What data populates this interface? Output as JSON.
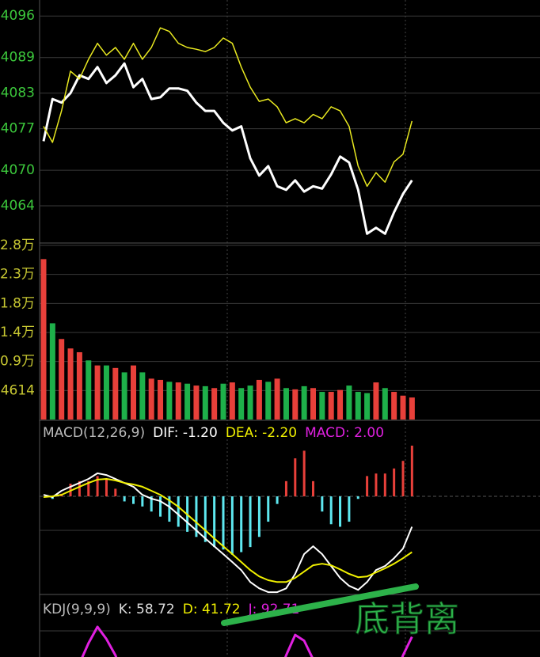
{
  "chart_data": [
    {
      "type": "line",
      "series": [
        {
          "name": "price",
          "color": "#ffffff",
          "width": 3,
          "values": [
            4074.9,
            4082.0,
            4081.4,
            4083.0,
            4086.0,
            4085.4,
            4087.4,
            4084.7,
            4086.0,
            4088.0,
            4084.0,
            4085.4,
            4082.0,
            4082.3,
            4083.8,
            4083.8,
            4083.4,
            4081.4,
            4080.0,
            4080.0,
            4078.0,
            4076.7,
            4077.4,
            4072.0,
            4069.1,
            4070.7,
            4067.3,
            4066.7,
            4068.3,
            4066.4,
            4067.3,
            4066.9,
            4069.3,
            4072.3,
            4071.3,
            4066.7,
            4059.3,
            4060.3,
            4059.3,
            4062.9,
            4066.0,
            4068.3
          ]
        },
        {
          "name": "avg",
          "color": "#e8e820",
          "width": 1.5,
          "values": [
            4077.4,
            4074.7,
            4080.0,
            4086.7,
            4085.4,
            4088.7,
            4091.4,
            4089.4,
            4090.7,
            4088.7,
            4091.4,
            4088.7,
            4090.7,
            4094.0,
            4093.4,
            4091.4,
            4090.7,
            4090.4,
            4090.0,
            4090.7,
            4092.3,
            4091.4,
            4087.4,
            4084.0,
            4081.6,
            4082.0,
            4080.7,
            4078.0,
            4078.7,
            4078.0,
            4079.4,
            4078.7,
            4080.7,
            4080.0,
            4077.4,
            4070.7,
            4067.3,
            4069.6,
            4068.0,
            4071.4,
            4072.7,
            4078.3
          ]
        }
      ],
      "ylim": [
        4058,
        4098.7
      ],
      "yticks": [
        4096,
        4089,
        4083,
        4077,
        4070,
        4064
      ],
      "tick_color": "#3cc83c"
    },
    {
      "type": "bar",
      "values": [
        25500,
        15300,
        12800,
        11300,
        10700,
        9400,
        8600,
        8600,
        8200,
        7500,
        8600,
        7500,
        6500,
        6300,
        6000,
        5900,
        5700,
        5400,
        5300,
        5000,
        5700,
        5900,
        5000,
        5400,
        6300,
        6000,
        6500,
        5000,
        4800,
        5300,
        5000,
        4400,
        4400,
        4700,
        5400,
        4400,
        4200,
        5900,
        5000,
        4400,
        3800,
        3500
      ],
      "colors": [
        "#e8403a",
        "#1eb04a",
        "#e8403a",
        "#e8403a",
        "#e8403a",
        "#1eb04a",
        "#e8403a",
        "#1eb04a",
        "#e8403a",
        "#1eb04a",
        "#e8403a",
        "#1eb04a",
        "#e8403a",
        "#e8403a",
        "#1eb04a",
        "#e8403a",
        "#1eb04a",
        "#e8403a",
        "#1eb04a",
        "#e8403a",
        "#1eb04a",
        "#e8403a",
        "#1eb04a",
        "#1eb04a",
        "#e8403a",
        "#1eb04a",
        "#e8403a",
        "#1eb04a",
        "#e8403a",
        "#1eb04a",
        "#e8403a",
        "#1eb04a",
        "#e8403a",
        "#e8403a",
        "#1eb04a",
        "#1eb04a",
        "#1eb04a",
        "#e8403a",
        "#1eb04a",
        "#e8403a",
        "#e8403a",
        "#e8403a"
      ],
      "ylim": [
        0,
        27684
      ],
      "yticks": [
        {
          "value": 27684,
          "label": "2.8万"
        },
        {
          "value": 23070,
          "label": "2.3万"
        },
        {
          "value": 18456,
          "label": "1.8万"
        },
        {
          "value": 13842,
          "label": "1.4万"
        },
        {
          "value": 9228,
          "label": "0.9万"
        },
        4614
      ],
      "tick_color": "#c8c832"
    },
    {
      "type": "macd",
      "title": "MACD(12,26,9)",
      "series": [
        {
          "name": "DIF: -1.20",
          "color": "#ffffff",
          "kind": "line",
          "values": [
            0.06,
            -0.03,
            0.22,
            0.38,
            0.53,
            0.69,
            0.91,
            0.84,
            0.69,
            0.53,
            0.38,
            0.06,
            -0.09,
            -0.19,
            -0.41,
            -0.72,
            -1.03,
            -1.34,
            -1.66,
            -1.97,
            -2.28,
            -2.59,
            -2.91,
            -3.38,
            -3.63,
            -3.78,
            -3.78,
            -3.63,
            -3.06,
            -2.28,
            -1.97,
            -2.28,
            -2.75,
            -3.22,
            -3.53,
            -3.69,
            -3.38,
            -2.91,
            -2.75,
            -2.44,
            -2.06,
            -1.2
          ]
        },
        {
          "name": "DEA: -2.20",
          "color": "#f0f000",
          "kind": "line",
          "values": [
            -0.03,
            0.0,
            0.06,
            0.22,
            0.38,
            0.53,
            0.66,
            0.69,
            0.63,
            0.53,
            0.47,
            0.38,
            0.22,
            0.06,
            -0.16,
            -0.41,
            -0.72,
            -1.03,
            -1.34,
            -1.66,
            -1.97,
            -2.28,
            -2.59,
            -2.91,
            -3.16,
            -3.31,
            -3.38,
            -3.38,
            -3.22,
            -2.97,
            -2.72,
            -2.66,
            -2.72,
            -2.88,
            -3.06,
            -3.19,
            -3.16,
            -3.0,
            -2.84,
            -2.66,
            -2.44,
            -2.2
          ]
        },
        {
          "name": "MACD: 2.00",
          "color": "#e020e0",
          "kind": "histogram",
          "up_color": "#e8403a",
          "down_color": "#5ee8f0",
          "values": [
            0,
            -0.1,
            0.1,
            0.5,
            0.6,
            0.6,
            0.8,
            0.7,
            0.3,
            -0.2,
            -0.3,
            -0.4,
            -0.6,
            -0.8,
            -1.0,
            -1.2,
            -1.4,
            -1.6,
            -1.8,
            -2.0,
            -2.1,
            -2.3,
            -2.2,
            -2.0,
            -1.6,
            -1.0,
            -0.3,
            0.6,
            1.5,
            1.8,
            0.6,
            -0.6,
            -1.1,
            -1.2,
            -1.0,
            -0.1,
            0.8,
            0.9,
            0.9,
            1.1,
            1.4,
            2.0
          ]
        }
      ],
      "ylim": [
        -3.84,
        2.25
      ]
    },
    {
      "type": "kdj",
      "title": "KDJ(9,9,9)",
      "series": [
        {
          "name": "K: 58.72",
          "color": "#dddddd"
        },
        {
          "name": "D: 41.72",
          "color": "#f0f000"
        },
        {
          "name": "J: 92.71",
          "color": "#e020e0",
          "kind": "line",
          "values": [
            null,
            null,
            null,
            40,
            60,
            85,
            105,
            90,
            70,
            40,
            null,
            null,
            null,
            null,
            null,
            null,
            null,
            null,
            null,
            null,
            null,
            null,
            null,
            null,
            null,
            null,
            40,
            70,
            95,
            88,
            65,
            40,
            null,
            null,
            null,
            null,
            null,
            null,
            null,
            40,
            70,
            92.71
          ]
        }
      ],
      "ylim": [
        0,
        100
      ],
      "annotation": "底背离"
    }
  ]
}
